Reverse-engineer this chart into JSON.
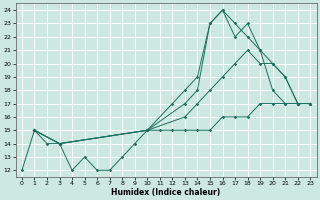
{
  "title": "",
  "xlabel": "Humidex (Indice chaleur)",
  "xlim": [
    -0.5,
    23.5
  ],
  "ylim": [
    11.5,
    24.5
  ],
  "yticks": [
    12,
    13,
    14,
    15,
    16,
    17,
    18,
    19,
    20,
    21,
    22,
    23,
    24
  ],
  "xticks": [
    0,
    1,
    2,
    3,
    4,
    5,
    6,
    7,
    8,
    9,
    10,
    11,
    12,
    13,
    14,
    15,
    16,
    17,
    18,
    19,
    20,
    21,
    22,
    23
  ],
  "bg_color": "#cce8e0",
  "grid_color": "#ffffff",
  "line_color": "#1a7060",
  "series": [
    {
      "x": [
        0,
        1,
        2,
        3,
        4,
        5,
        6,
        7,
        8,
        9,
        10,
        11,
        12,
        13,
        14,
        15,
        16,
        17,
        18,
        19,
        20,
        21,
        22,
        23
      ],
      "y": [
        12,
        15,
        14,
        14,
        12,
        13,
        12,
        12,
        13,
        14,
        15,
        15,
        15,
        15,
        15,
        15,
        16,
        16,
        16,
        17,
        17,
        17,
        17,
        17
      ]
    },
    {
      "x": [
        1,
        3,
        10,
        13,
        14,
        15,
        16,
        17,
        18,
        19,
        20,
        21,
        22,
        23
      ],
      "y": [
        15,
        14,
        15,
        16,
        17,
        18,
        19,
        20,
        21,
        20,
        20,
        19,
        17,
        17
      ]
    },
    {
      "x": [
        1,
        3,
        10,
        13,
        14,
        15,
        16,
        17,
        18,
        19,
        20,
        21,
        22,
        23
      ],
      "y": [
        15,
        14,
        15,
        17,
        18,
        23,
        24,
        22,
        23,
        21,
        18,
        17,
        17,
        17
      ]
    },
    {
      "x": [
        1,
        3,
        10,
        12,
        13,
        14,
        15,
        16,
        17,
        18,
        19,
        20,
        21,
        22,
        23
      ],
      "y": [
        15,
        14,
        15,
        17,
        18,
        19,
        23,
        24,
        23,
        22,
        21,
        20,
        19,
        17,
        17
      ]
    }
  ]
}
